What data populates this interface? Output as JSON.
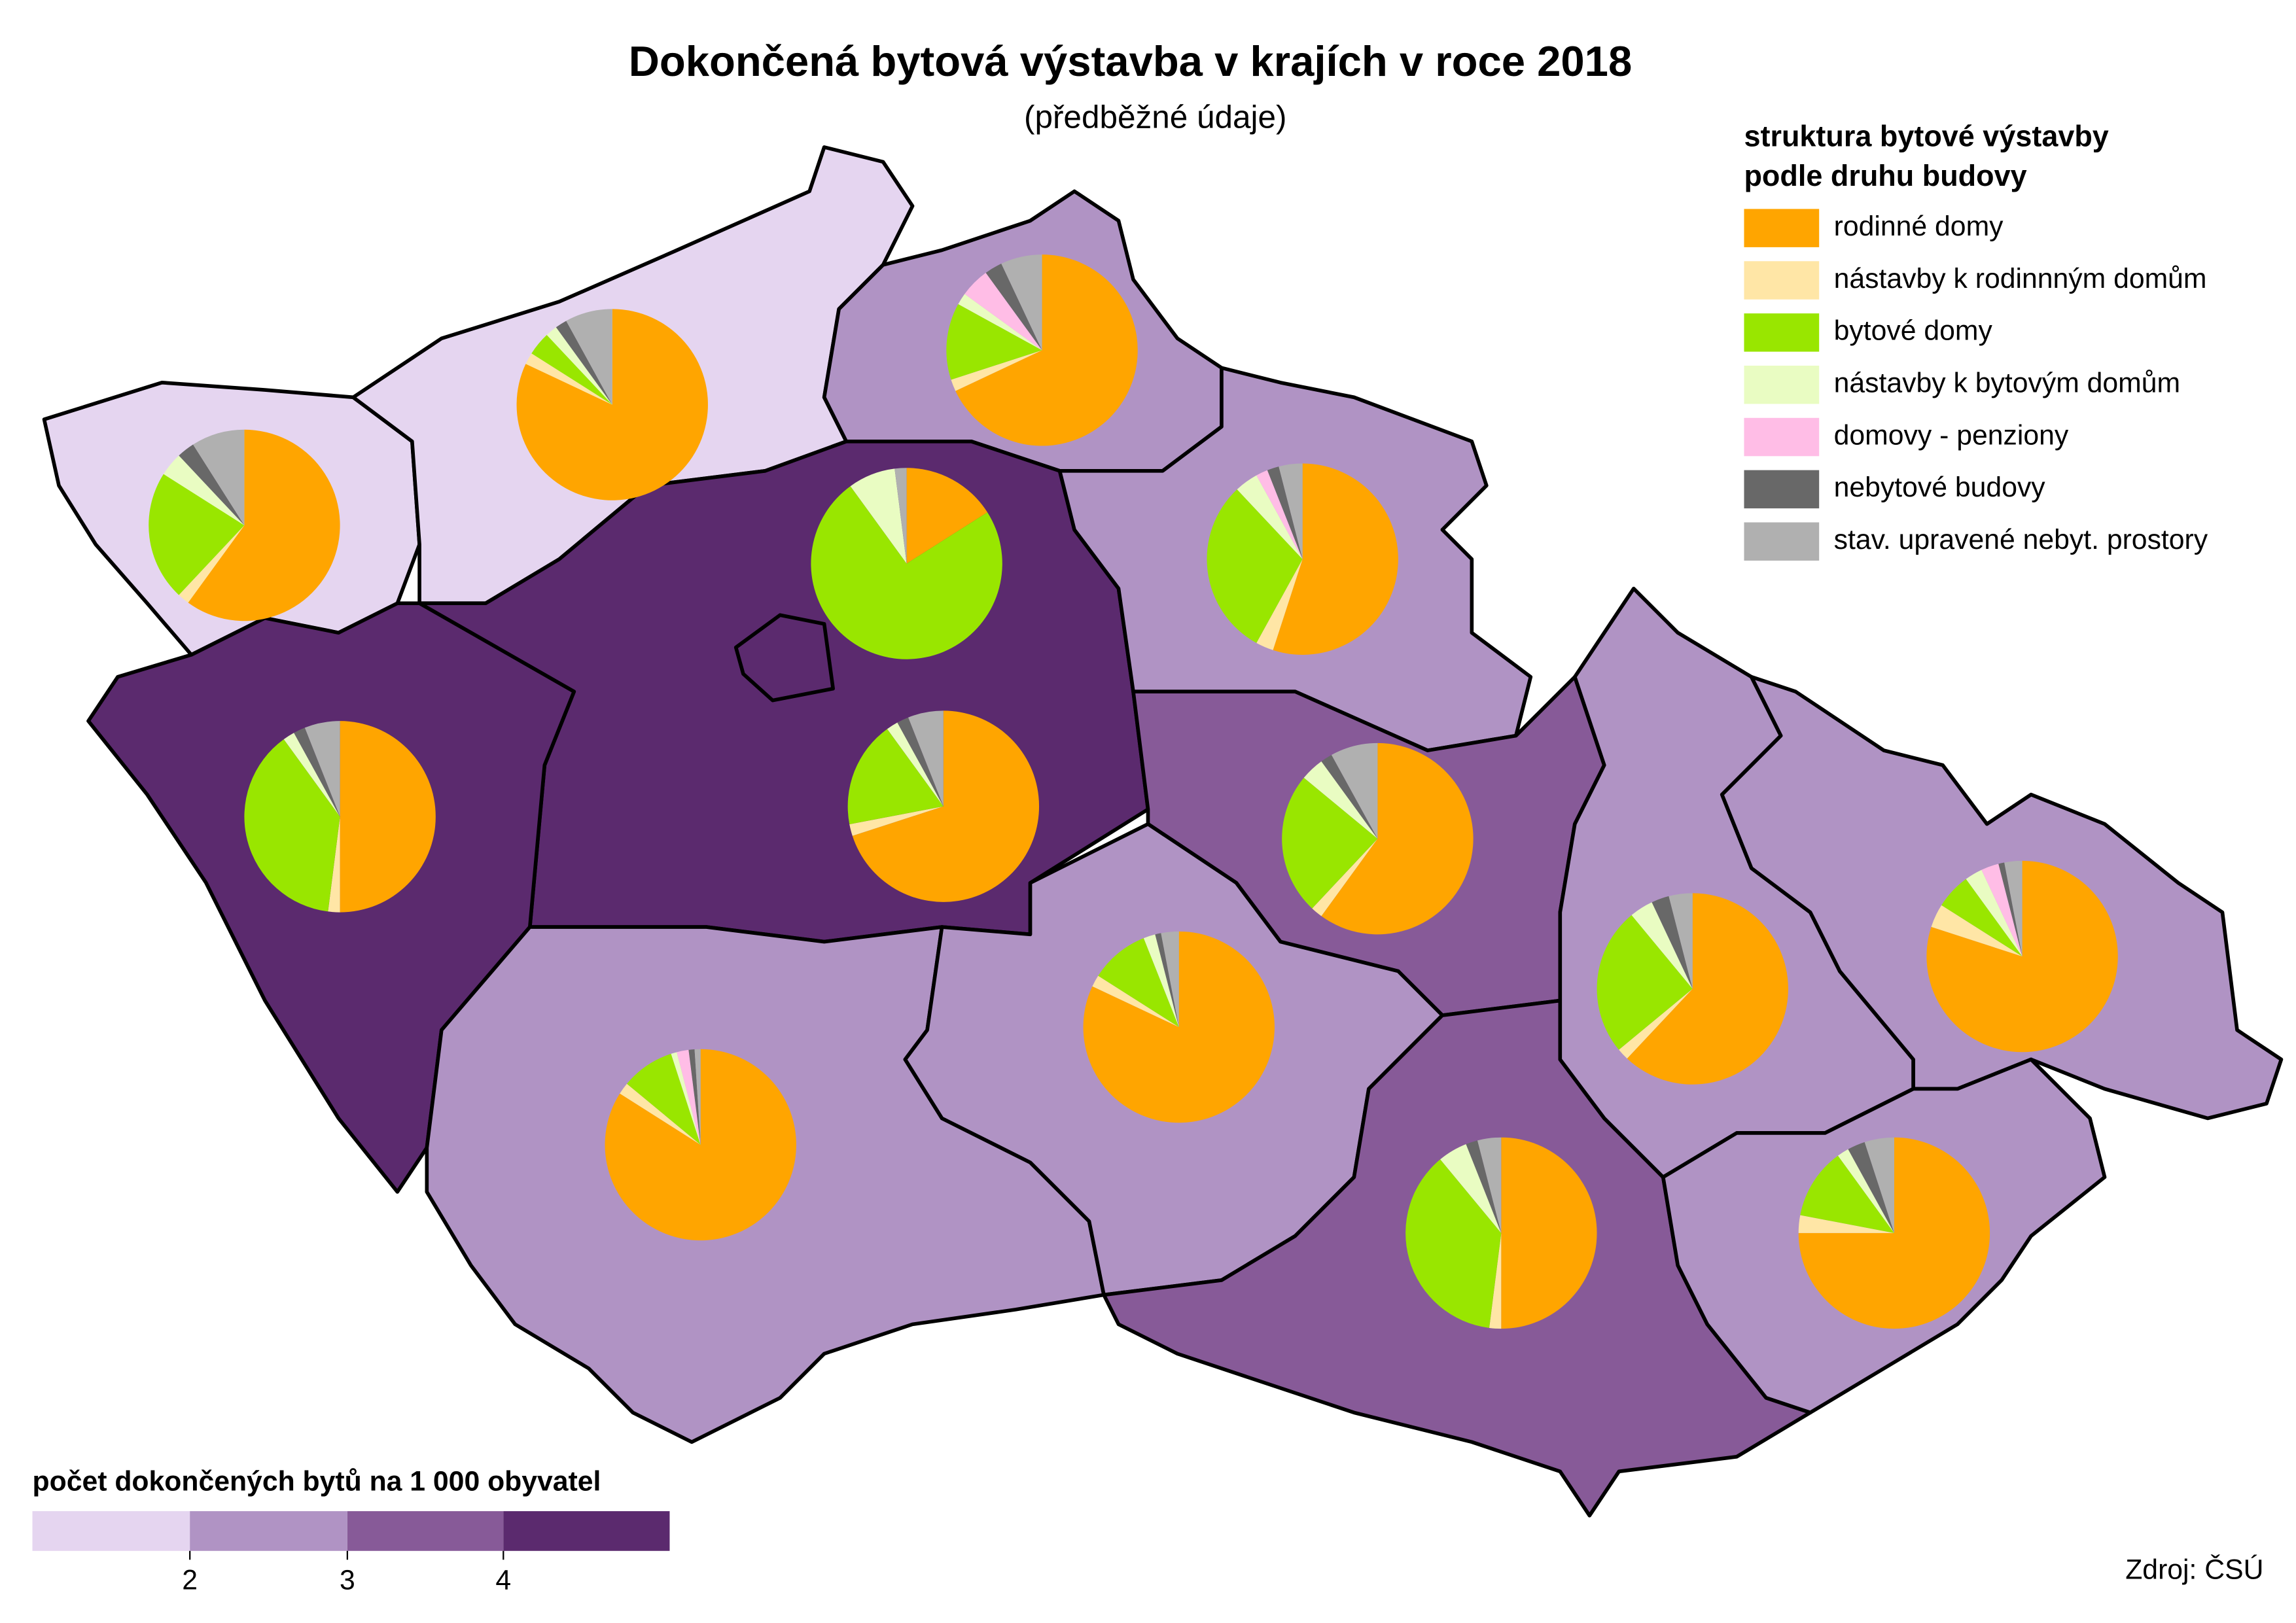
{
  "title": "Dokončená bytová výstavba v krajích v roce 2018",
  "subtitle": "(předběžné údaje)",
  "pie_legend": {
    "title": [
      "struktura bytové výstavby",
      "podle druhu budovy"
    ],
    "items": [
      {
        "name": "rodinné domy",
        "color": "#ffa500"
      },
      {
        "name": "nástavby k rodinnným domům",
        "color": "#ffe6a6"
      },
      {
        "name": "bytové domy",
        "color": "#99e600"
      },
      {
        "name": "nástavby k bytovým domům",
        "color": "#e9fcc2"
      },
      {
        "name": "domovy - penziony",
        "color": "#ffbde6"
      },
      {
        "name": "nebytové budovy",
        "color": "#686868"
      },
      {
        "name": "stav. upravené nebyt. prostory",
        "color": "#b0b0b0"
      }
    ]
  },
  "color_scale": {
    "title": "počet dokončených bytů na 1 000 obyvatel",
    "colors": [
      "#e5d5f0",
      "#b093c4",
      "#875a98",
      "#5b2a6e"
    ],
    "ticks": [
      2,
      3,
      4
    ]
  },
  "regions": [
    {
      "color": "#e5d5f0",
      "pie": [
        60,
        2,
        22,
        4,
        0,
        3,
        9
      ]
    },
    {
      "color": "#e5d5f0",
      "pie": [
        82,
        2,
        4,
        2,
        0,
        2,
        8
      ]
    },
    {
      "color": "#b093c4",
      "pie": [
        68,
        2,
        13,
        2,
        5,
        3,
        7
      ]
    },
    {
      "color": "#5b2a6e",
      "pie": [
        16,
        0,
        74,
        8,
        0,
        0,
        2
      ]
    },
    {
      "color": "#5b2a6e",
      "pie": [
        70,
        2,
        18,
        2,
        0,
        2,
        6
      ]
    },
    {
      "color": "#5b2a6e",
      "pie": [
        50,
        2,
        38,
        2,
        0,
        2,
        6
      ]
    },
    {
      "color": "#b093c4",
      "pie": [
        84,
        2,
        9,
        1,
        2,
        1,
        1
      ]
    },
    {
      "color": "#b093c4",
      "pie": [
        55,
        3,
        30,
        4,
        2,
        2,
        4
      ]
    },
    {
      "color": "#875a98",
      "pie": [
        60,
        2,
        24,
        4,
        0,
        2,
        8
      ]
    },
    {
      "color": "#b093c4",
      "pie": [
        82,
        2,
        10,
        2,
        0,
        1,
        3
      ]
    },
    {
      "color": "#875a98",
      "pie": [
        50,
        2,
        37,
        5,
        0,
        2,
        4
      ]
    },
    {
      "color": "#b093c4",
      "pie": [
        62,
        2,
        25,
        4,
        0,
        3,
        4
      ]
    },
    {
      "color": "#b093c4",
      "pie": [
        80,
        4,
        6,
        3,
        3,
        1,
        3
      ]
    },
    {
      "color": "#b093c4",
      "pie": [
        75,
        3,
        12,
        2,
        0,
        3,
        5
      ]
    }
  ],
  "source": "Zdroj: ČSÚ"
}
